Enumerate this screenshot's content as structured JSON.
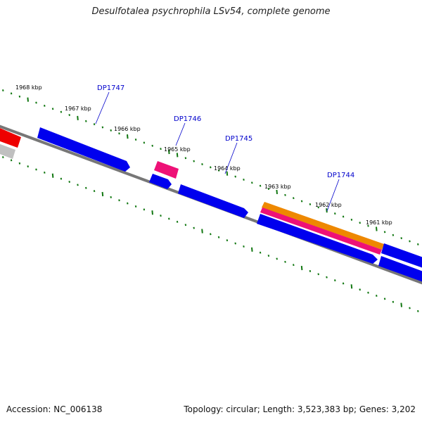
{
  "title": "Desulfotalea psychrophila LSv54, complete genome",
  "footer": {
    "accession": "Accession: NC_006138",
    "stats": "Topology: circular; Length: 3,523,383 bp; Genes: 3,202"
  },
  "ticks": [
    {
      "label": "1968 kbp"
    },
    {
      "label": "1967 kbp"
    },
    {
      "label": "1966 kbp"
    },
    {
      "label": "1965 kbp"
    },
    {
      "label": "1964 kbp"
    },
    {
      "label": "1963 kbp"
    },
    {
      "label": "1962 kbp"
    },
    {
      "label": "1961 kbp"
    }
  ],
  "genes": [
    {
      "label": "DP1747"
    },
    {
      "label": "DP1746"
    },
    {
      "label": "DP1745"
    },
    {
      "label": "DP1744"
    }
  ],
  "colors": {
    "cds": "#0000ee",
    "rna": "#ee1177",
    "orange": "#ee8800",
    "red": "#ee0000",
    "gray": "#bbbbbb",
    "backbone": "#777777",
    "ticks": "#117711"
  }
}
